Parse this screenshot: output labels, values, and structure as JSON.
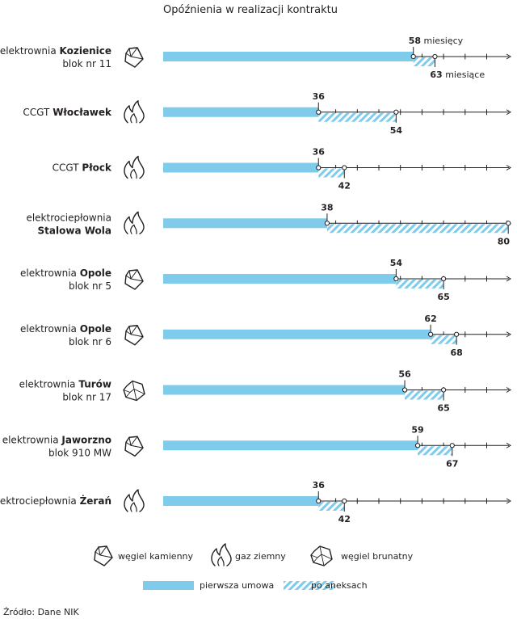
{
  "chart_data": {
    "type": "bar",
    "title": "Opóźnienia w realizacji kontraktu",
    "xlabel": "",
    "ylabel": "",
    "xlim": [
      0,
      81
    ],
    "x_unit": "miesiące",
    "tick_step": 5,
    "series": [
      {
        "name": "pierwsza umowa",
        "color": "#7ecbec"
      },
      {
        "name": "po aneksach",
        "color": "#7ecbec",
        "pattern": "hatched"
      }
    ],
    "categories": [
      {
        "prefix": "elektrownia ",
        "name": "Kozienice",
        "line2": "blok nr 11",
        "fuel": "coal",
        "first": 58,
        "annex": 63,
        "first_suffix": " miesięcy",
        "annex_suffix": " miesiące"
      },
      {
        "prefix": "CCGT ",
        "name": "Włocławek",
        "line2": "",
        "fuel": "gas",
        "first": 36,
        "annex": 54,
        "first_suffix": "",
        "annex_suffix": ""
      },
      {
        "prefix": "CCGT ",
        "name": "Płock",
        "line2": "",
        "fuel": "gas",
        "first": 36,
        "annex": 42,
        "first_suffix": "",
        "annex_suffix": ""
      },
      {
        "prefix": "elektrociepłownia",
        "name": "Stalowa Wola",
        "line2": "",
        "fuel": "gas",
        "first": 38,
        "annex": 80,
        "first_suffix": "",
        "annex_suffix": "",
        "name_on_second_line": true
      },
      {
        "prefix": "elektrownia ",
        "name": "Opole",
        "line2": "blok nr 5",
        "fuel": "coal",
        "first": 54,
        "annex": 65,
        "first_suffix": "",
        "annex_suffix": ""
      },
      {
        "prefix": "elektrownia ",
        "name": "Opole",
        "line2": "blok nr 6",
        "fuel": "coal",
        "first": 62,
        "annex": 68,
        "first_suffix": "",
        "annex_suffix": ""
      },
      {
        "prefix": "elektrownia ",
        "name": "Turów",
        "line2": "blok nr 17",
        "fuel": "lignite",
        "first": 56,
        "annex": 65,
        "first_suffix": "",
        "annex_suffix": ""
      },
      {
        "prefix": "elektrownia ",
        "name": "Jaworzno",
        "line2": "blok 910 MW",
        "fuel": "coal",
        "first": 59,
        "annex": 67,
        "first_suffix": "",
        "annex_suffix": ""
      },
      {
        "prefix": "elektrociepłownia ",
        "name": "Żerań",
        "line2": "",
        "fuel": "gas",
        "first": 36,
        "annex": 42,
        "first_suffix": "",
        "annex_suffix": ""
      }
    ],
    "legend_icons": [
      {
        "fuel": "coal",
        "label": "węgiel kamienny"
      },
      {
        "fuel": "gas",
        "label": "gaz ziemny"
      },
      {
        "fuel": "lignite",
        "label": "węgiel brunatny"
      }
    ],
    "legend_bars": [
      {
        "label": "pierwsza umowa",
        "style": "solid"
      },
      {
        "label": "po aneksach",
        "style": "hatched"
      }
    ]
  },
  "source": "Źródło: Dane NIK"
}
